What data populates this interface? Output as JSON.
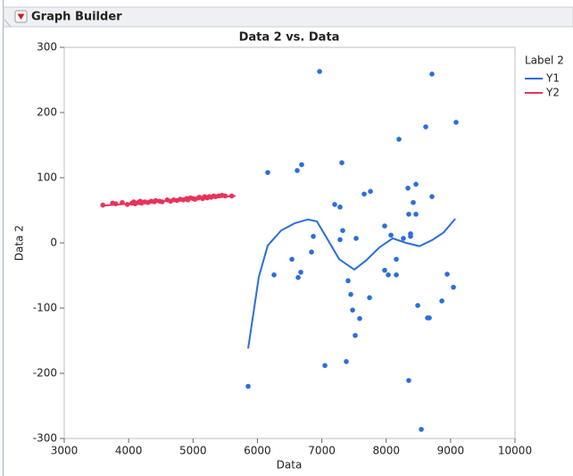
{
  "header": {
    "title": "Graph Builder"
  },
  "chart_data": {
    "type": "scatter",
    "title": "Data 2 vs. Data",
    "x_label": "Data",
    "y_label": "Data 2",
    "legend_title": "Label 2",
    "xlim": [
      3000,
      10000
    ],
    "xticks": [
      3000,
      4000,
      5000,
      6000,
      7000,
      8000,
      9000,
      10000
    ],
    "ylim": [
      -300,
      300
    ],
    "yticks": [
      -300,
      -200,
      -100,
      0,
      100,
      200,
      300
    ],
    "series": [
      {
        "name": "Y1",
        "color": "#2a6fdb",
        "x": [
          5856,
          6160,
          6258,
          6535,
          6618,
          6687,
          6632,
          6673,
          6840,
          6868,
          6965,
          7048,
          7200,
          7283,
          7311,
          7283,
          7325,
          7380,
          7408,
          7450,
          7478,
          7519,
          7533,
          7588,
          7658,
          7755,
          7741,
          7976,
          7976,
          8032,
          8074,
          8157,
          8157,
          8198,
          8267,
          8337,
          8350,
          8378,
          8378,
          8420,
          8462,
          8462,
          8490,
          8545,
          8350,
          8614,
          8642,
          8670,
          8711,
          8711,
          8864,
          8947,
          9044,
          9085
        ],
        "values": [
          -220,
          108,
          -49,
          -25,
          111,
          120,
          -53,
          -45,
          -14,
          10,
          263,
          -188,
          59,
          55,
          123,
          5,
          19,
          -182,
          -58,
          -79,
          -103,
          -142,
          7,
          -116,
          75,
          79,
          -84,
          26,
          -42,
          -49,
          12,
          -25,
          -49,
          159,
          7,
          84,
          44,
          14,
          10,
          62,
          90,
          44,
          -96,
          -286,
          -211,
          178,
          -115,
          -115,
          259,
          71,
          -89,
          -48,
          -68,
          185
        ],
        "fit_x": [
          5856,
          6022,
          6160,
          6368,
          6576,
          6784,
          6923,
          7062,
          7270,
          7505,
          7686,
          7893,
          8101,
          8309,
          8517,
          8725,
          8892,
          9072
        ],
        "fit_values": [
          -162,
          -52,
          -4,
          19,
          30,
          36,
          33,
          10,
          -25,
          -41,
          -27,
          -7,
          7,
          0,
          -5,
          5,
          16,
          37
        ]
      },
      {
        "name": "Y2",
        "color": "#e8335a",
        "x": [
          3600,
          3750,
          3800,
          3900,
          3980,
          4050,
          4080,
          4100,
          4150,
          4180,
          4200,
          4250,
          4300,
          4350,
          4400,
          4420,
          4480,
          4520,
          4600,
          4650,
          4700,
          4750,
          4800,
          4850,
          4900,
          4920,
          4960,
          5000,
          5030,
          5080,
          5100,
          5150,
          5180,
          5220,
          5250,
          5280,
          5320,
          5350,
          5400,
          5450,
          5500,
          5600
        ],
        "values": [
          58,
          61,
          60,
          62,
          59,
          61,
          63,
          60,
          62,
          64,
          61,
          63,
          62,
          64,
          63,
          65,
          64,
          63,
          66,
          64,
          66,
          65,
          67,
          66,
          68,
          66,
          69,
          68,
          67,
          69,
          70,
          68,
          71,
          69,
          71,
          70,
          72,
          71,
          72,
          73,
          72,
          72
        ],
        "fit_x": [
          3570,
          5660
        ],
        "fit_values": [
          57,
          72
        ]
      }
    ]
  }
}
